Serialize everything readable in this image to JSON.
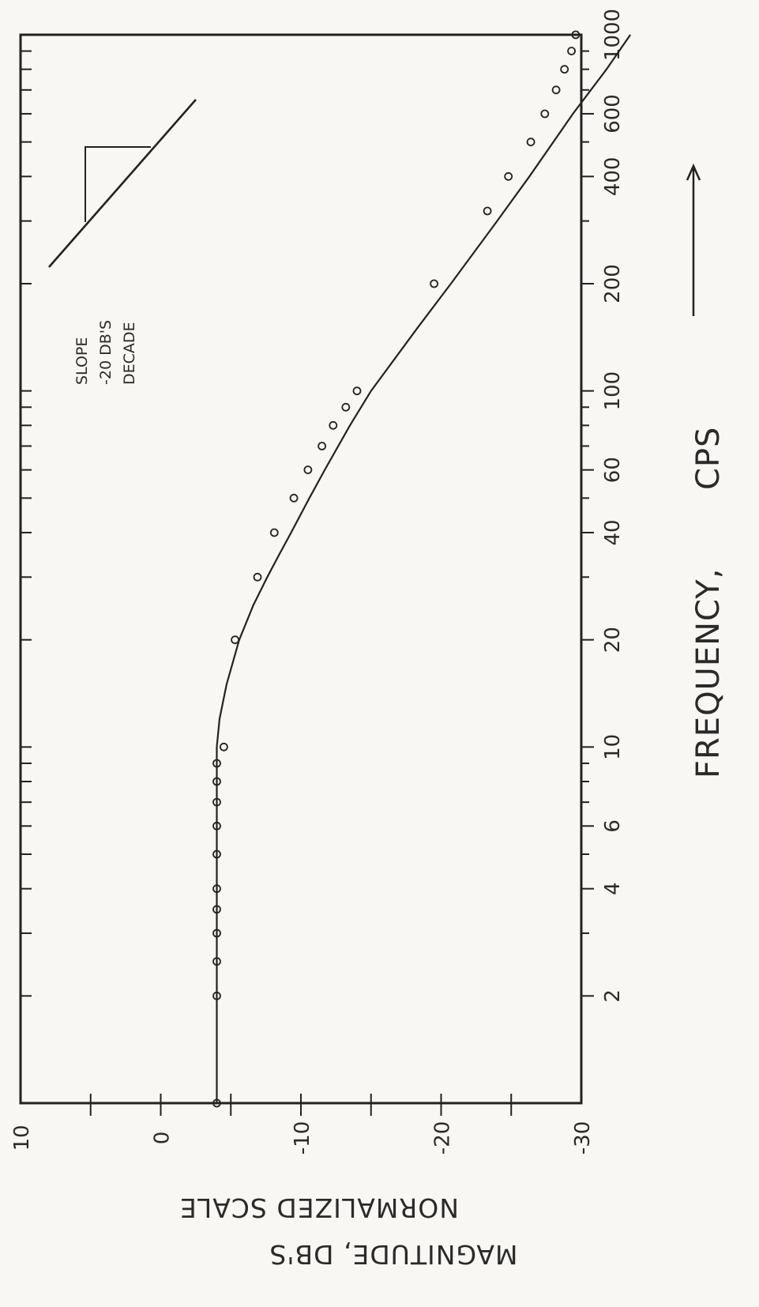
{
  "chart_data": {
    "type": "line",
    "xlabel": "FREQUENCY,",
    "xlabel_unit": "CPS",
    "ylabel_line1": "MAGNITUDE, DB'S",
    "ylabel_line2": "NORMALIZED SCALE",
    "x_scale": "log",
    "xlim": [
      1,
      1000
    ],
    "ylim": [
      -30,
      10
    ],
    "x_ticks": [
      1,
      2,
      3,
      4,
      5,
      6,
      7,
      8,
      9,
      10,
      20,
      30,
      40,
      50,
      60,
      70,
      80,
      90,
      100,
      200,
      300,
      400,
      500,
      600,
      700,
      800,
      900,
      1000
    ],
    "x_tick_labels": [
      {
        "value": 2,
        "label": "2"
      },
      {
        "value": 4,
        "label": "4"
      },
      {
        "value": 6,
        "label": "6"
      },
      {
        "value": 10,
        "label": "10"
      },
      {
        "value": 20,
        "label": "20"
      },
      {
        "value": 40,
        "label": "40"
      },
      {
        "value": 60,
        "label": "60"
      },
      {
        "value": 100,
        "label": "100"
      },
      {
        "value": 200,
        "label": "200"
      },
      {
        "value": 400,
        "label": "400"
      },
      {
        "value": 600,
        "label": "600"
      },
      {
        "value": 1000,
        "label": "1000"
      }
    ],
    "y_ticks": [
      -30,
      -25,
      -20,
      -15,
      -10,
      -5,
      0,
      5,
      10
    ],
    "y_tick_labels": [
      {
        "value": 10,
        "label": "10"
      },
      {
        "value": 0,
        "label": "0"
      },
      {
        "value": -10,
        "label": "-10"
      },
      {
        "value": -20,
        "label": "-20"
      },
      {
        "value": -30,
        "label": "-30"
      }
    ],
    "grid": false,
    "series": [
      {
        "kind": "line",
        "x": [
          1,
          2,
          4,
          6,
          8,
          10,
          12,
          15,
          20,
          25,
          30,
          35,
          40,
          50,
          60,
          80,
          100,
          150,
          200,
          300,
          400,
          600,
          800,
          1000
        ],
        "y": [
          -4,
          -4,
          -4,
          -4,
          -4,
          -4,
          -4.2,
          -4.7,
          -5.6,
          -6.6,
          -7.6,
          -8.5,
          -9.3,
          -10.6,
          -11.7,
          -13.5,
          -15,
          -18.3,
          -20.7,
          -24,
          -26.3,
          -29.4,
          -31.8,
          -33.5
        ]
      },
      {
        "kind": "scatter",
        "x": [
          1,
          2,
          2.5,
          3,
          3.5,
          4,
          5,
          6,
          7,
          8,
          9,
          10,
          20,
          30,
          40,
          50,
          60,
          70,
          80,
          90,
          100,
          200,
          320,
          400,
          500,
          600,
          700,
          800,
          900,
          1000
        ],
        "y": [
          -4,
          -4,
          -4,
          -4,
          -4,
          -4,
          -4,
          -4,
          -4,
          -4,
          -4,
          -4.5,
          -5.3,
          -6.9,
          -8.1,
          -9.5,
          -10.5,
          -11.5,
          -12.3,
          -13.2,
          -14,
          -19.5,
          -23.3,
          -24.8,
          -26.4,
          -27.4,
          -28.2,
          -28.8,
          -29.3,
          -29.6
        ]
      }
    ],
    "slope_annotation": {
      "line1": "SLOPE",
      "line2": "-20 DB'S",
      "line3": "DECADE"
    }
  }
}
